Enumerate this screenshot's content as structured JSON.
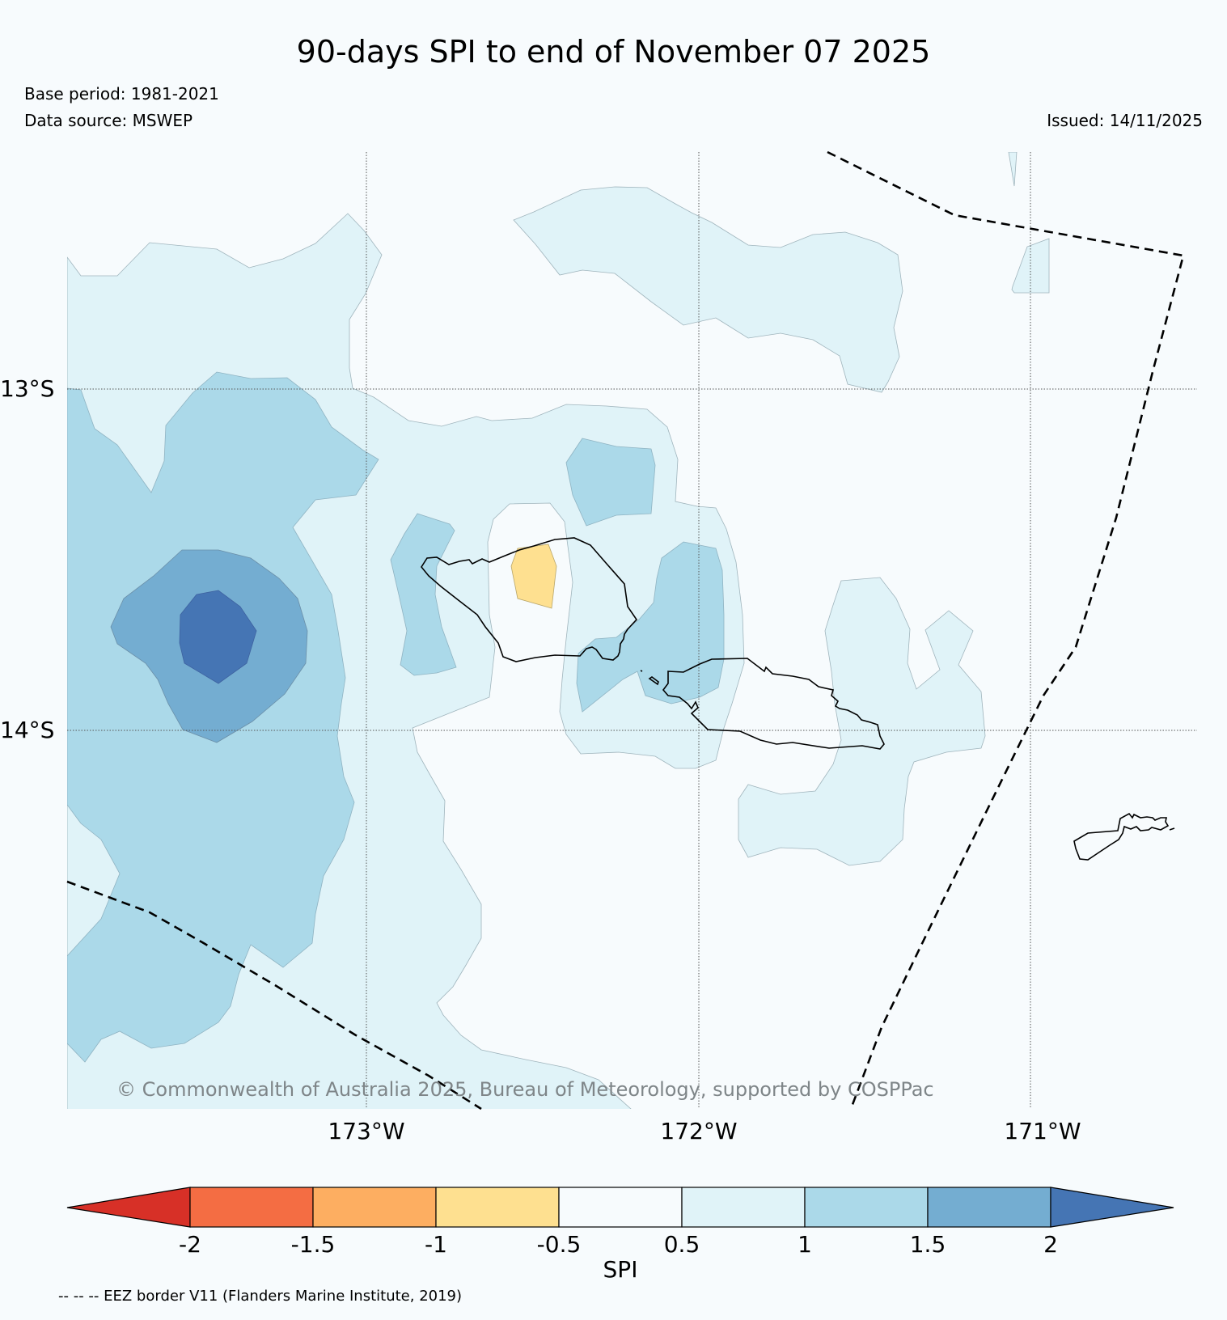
{
  "header": {
    "title": "90-days SPI to end of November 07 2025",
    "base_period": "Base period: 1981-2021",
    "data_source": "Data source: MSWEP",
    "issued": "Issued: 14/11/2025"
  },
  "map": {
    "lon_labels": [
      "173°W",
      "172°W",
      "171°W"
    ],
    "lat_labels": [
      "13°S",
      "14°S"
    ],
    "copyright": "© Commonwealth of Australia 2025, Bureau of Meteorology, supported by COSPPac"
  },
  "legend": {
    "label": "SPI",
    "ticks": [
      "-2",
      "-1.5",
      "-1",
      "-0.5",
      "0.5",
      "1",
      "1.5",
      "2"
    ],
    "colors": {
      "lt_m2": "#d73027",
      "m2_m15": "#f46d43",
      "m15_m1": "#fdae61",
      "m1_m05": "#fee090",
      "m05_05": "#f7fbfd",
      "c05_1": "#e0f3f8",
      "c1_15": "#abd9e9",
      "c15_2": "#74add1",
      "gt_2": "#4575b4"
    }
  },
  "footnote": "-- -- -- EEZ border V11 (Flanders Marine Institute, 2019)"
}
